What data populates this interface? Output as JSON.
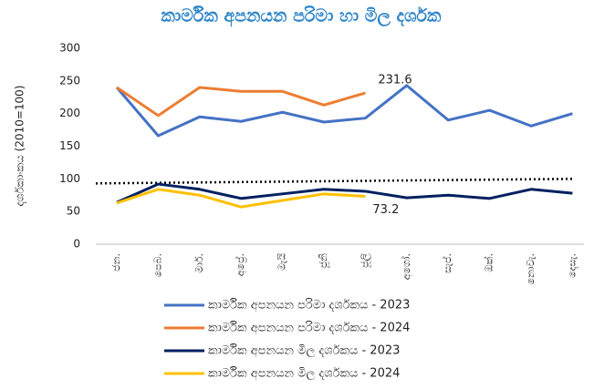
{
  "chart_data": {
    "type": "line",
    "title": "කාර්මික අපනයන පරිමා හා මිල දර්ශක",
    "y_label": "දර්ශකාංකය  (2010=100)",
    "categories": [
      "ජන.",
      "පෙබ.",
      "මාර්.",
      "අප්‍රේ.",
      "මැයි",
      "ජූනි",
      "ජූලි",
      "අගෝ.",
      "සැප්.",
      "ඔක්.",
      "නොවැ.",
      "දෙසැ."
    ],
    "series": [
      {
        "name": "කාර්මික අපනයන පරිමා දර්ශකය - 2023",
        "color": "#4472c4",
        "values": [
          240,
          166,
          195,
          188,
          202,
          187,
          193,
          243,
          190,
          205,
          181,
          200
        ]
      },
      {
        "name": "කාර්මික අපනයන පරිමා දර්ශකය - 2024",
        "color": "#ed7d31",
        "values": [
          240,
          197,
          240,
          234,
          234,
          213,
          231.6,
          null,
          null,
          null,
          null,
          null
        ],
        "label_points": [
          6
        ],
        "label_side": "above"
      },
      {
        "name": "කාර්මික අපනයන මිල දර්ශකය - 2023",
        "color": "#002060",
        "values": [
          64,
          92,
          84,
          70,
          77,
          84,
          81,
          71,
          75,
          70,
          84,
          78
        ]
      },
      {
        "name": "කාර්මික අපනයන මිල දර්ශකය - 2024",
        "color": "#ffc000",
        "values": [
          63,
          84,
          75,
          57,
          67,
          77,
          73.2,
          null,
          null,
          null,
          null,
          null
        ],
        "label_points": [
          6
        ],
        "label_side": "below"
      }
    ],
    "trendline": {
      "start": 93,
      "end": 100,
      "color": "#000000"
    },
    "ylim": [
      0,
      300
    ],
    "yticks": [
      0,
      50,
      100,
      150,
      200,
      250,
      300
    ],
    "grid": false
  }
}
